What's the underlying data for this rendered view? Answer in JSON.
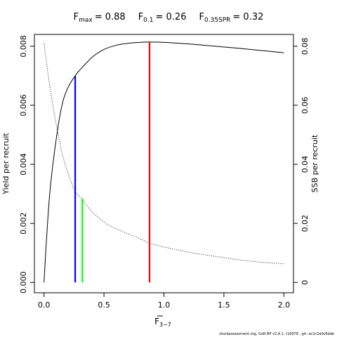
{
  "chart_data": {
    "type": "line",
    "title": {
      "fmax_sym": "F",
      "fmax_sub": "max",
      "fmax_val": "= 0.88",
      "f01_sym": "F",
      "f01_sub": "0.1",
      "f01_val": "= 0.26",
      "fspr_sym": "F",
      "fspr_sub": "0.35SPR",
      "fspr_val": "= 0.32"
    },
    "xlabel": {
      "main": "F",
      "sub": "3−7"
    },
    "ylabel_left": "Yield per recruit",
    "ylabel_right": "SSB per recruit",
    "xlim": [
      -0.08,
      2.08
    ],
    "ylim_left": [
      -0.00035,
      0.0084
    ],
    "ylim_right": [
      -0.0035,
      0.084
    ],
    "x_ticks": [
      0,
      0.5,
      1.0,
      1.5,
      2.0
    ],
    "x_tick_labels": [
      "0.0",
      "0.5",
      "1.0",
      "1.5",
      "2.0"
    ],
    "y_left_ticks": [
      0,
      0.002,
      0.004,
      0.006,
      0.008
    ],
    "y_left_tick_labels": [
      "0.000",
      "0.002",
      "0.004",
      "0.006",
      "0.008"
    ],
    "y_right_ticks": [
      0,
      0.02,
      0.04,
      0.06,
      0.08
    ],
    "y_right_tick_labels": [
      "0",
      "0.02",
      "0.04",
      "0.06",
      "0.08"
    ],
    "series": [
      {
        "axis": "left",
        "line": "solid",
        "color": "#000000",
        "x": [
          0,
          0.02,
          0.05,
          0.1,
          0.15,
          0.2,
          0.26,
          0.3,
          0.4,
          0.5,
          0.6,
          0.7,
          0.8,
          0.88,
          1.0,
          1.2,
          1.4,
          1.6,
          1.8,
          2.0
        ],
        "y": [
          0,
          0.0014,
          0.0031,
          0.0048,
          0.006,
          0.0066,
          0.007,
          0.0072,
          0.00762,
          0.00789,
          0.00803,
          0.0081,
          0.00813,
          0.00814,
          0.00813,
          0.00808,
          0.00801,
          0.00794,
          0.00786,
          0.00778
        ]
      },
      {
        "axis": "right",
        "line": "dotted",
        "color": "#000000",
        "x": [
          0,
          0.05,
          0.1,
          0.15,
          0.2,
          0.26,
          0.32,
          0.4,
          0.5,
          0.6,
          0.8,
          0.88,
          1.0,
          1.2,
          1.4,
          1.6,
          1.8,
          2.0
        ],
        "y": [
          0.081,
          0.066,
          0.054,
          0.044,
          0.037,
          0.031,
          0.028,
          0.024,
          0.0205,
          0.0182,
          0.0148,
          0.0133,
          0.012,
          0.0103,
          0.009,
          0.0078,
          0.0069,
          0.0063
        ]
      }
    ],
    "reference_lines": [
      {
        "name": "F0.1",
        "x": 0.26,
        "y": 0.007,
        "color": "#0000ff"
      },
      {
        "name": "F0.35SPR",
        "x": 0.32,
        "y": 0.00285,
        "color": "#00ff00"
      },
      {
        "name": "Fmax",
        "x": 0.88,
        "y": 0.00814,
        "color": "#ff0000"
      }
    ],
    "footnote": "stockassessment.org, GoR BP  v2.4.1, r16978 , git: ec2c2a0c6dde"
  }
}
